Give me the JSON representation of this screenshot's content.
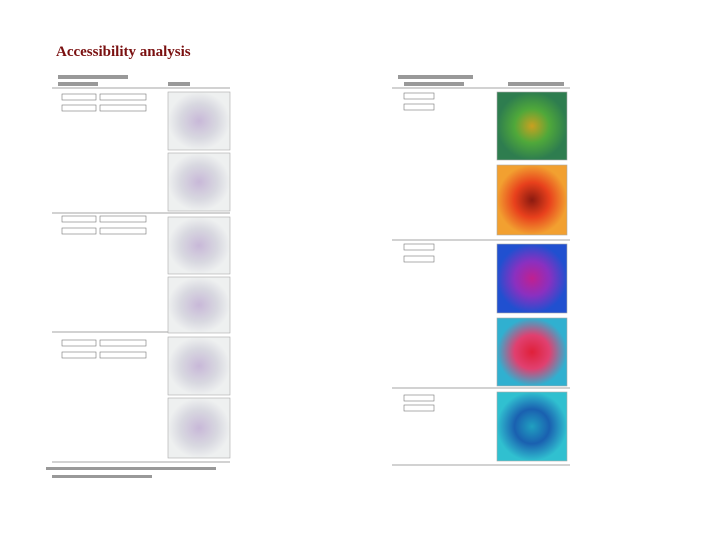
{
  "header": {
    "title": "Accessibility analysis"
  }
}
